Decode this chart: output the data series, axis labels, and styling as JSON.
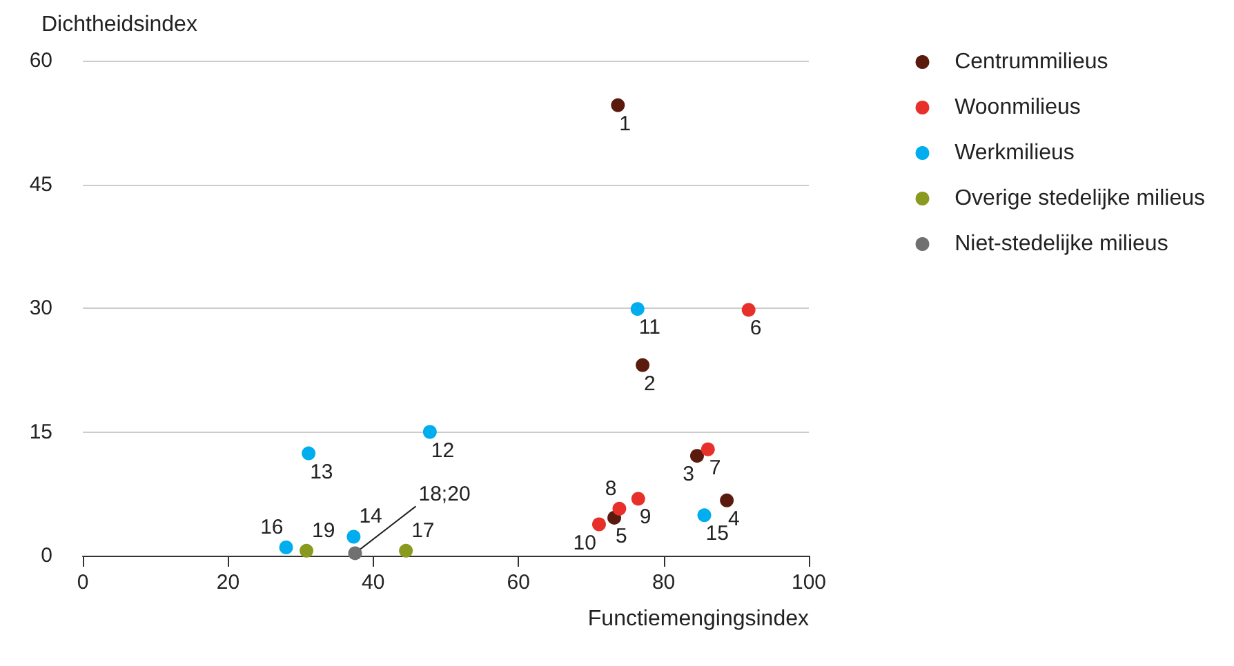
{
  "chart_data": {
    "type": "scatter",
    "xlabel": "Functiemengingsindex",
    "ylabel": "Dichtheidsindex",
    "xlim": [
      0,
      100
    ],
    "xticks": [
      0,
      20,
      40,
      60,
      80,
      100
    ],
    "ylim": [
      0,
      60
    ],
    "yticks": [
      0,
      15,
      30,
      45,
      60
    ],
    "grid": "y",
    "legend": "right",
    "marker": "circle",
    "series": [
      {
        "name": "Centrummilieus",
        "color": "#5a1a0e",
        "x": [
          73.7,
          77.1,
          84.6,
          88.7,
          73.2
        ],
        "values": [
          54.6,
          23.1,
          12.1,
          6.7,
          4.6
        ]
      },
      {
        "name": "Woonmilieus",
        "color": "#e8302a",
        "x": [
          91.7,
          86.1,
          73.9,
          76.5,
          71.1
        ],
        "values": [
          29.8,
          12.9,
          5.7,
          6.9,
          3.8
        ]
      },
      {
        "name": "Werkmilieus",
        "color": "#00aeef",
        "x": [
          76.4,
          47.8,
          31.1,
          37.3,
          85.6,
          28.0
        ],
        "values": [
          29.9,
          15.0,
          12.4,
          2.3,
          4.9,
          1.0
        ]
      },
      {
        "name": "Overige stedelijke milieus",
        "color": "#8a9a1e",
        "x": [
          44.5,
          30.8
        ],
        "values": [
          0.6,
          0.6
        ]
      },
      {
        "name": "Niet-stedelijke milieus",
        "color": "#707070",
        "x": [
          37.5
        ],
        "values": [
          0.3
        ]
      }
    ],
    "annotations": [
      {
        "text": "1",
        "x": 73.7,
        "y": 54.6
      },
      {
        "text": "2",
        "x": 77.1,
        "y": 23.1
      },
      {
        "text": "3",
        "x": 84.6,
        "y": 12.1
      },
      {
        "text": "4",
        "x": 88.7,
        "y": 6.7
      },
      {
        "text": "5",
        "x": 73.2,
        "y": 4.6
      },
      {
        "text": "6",
        "x": 91.7,
        "y": 29.8
      },
      {
        "text": "7",
        "x": 86.1,
        "y": 12.9
      },
      {
        "text": "8",
        "x": 73.9,
        "y": 5.7
      },
      {
        "text": "9",
        "x": 76.5,
        "y": 6.9
      },
      {
        "text": "10",
        "x": 71.1,
        "y": 3.8
      },
      {
        "text": "11",
        "x": 76.4,
        "y": 29.9
      },
      {
        "text": "12",
        "x": 47.8,
        "y": 15.0
      },
      {
        "text": "13",
        "x": 31.1,
        "y": 12.4
      },
      {
        "text": "14",
        "x": 37.3,
        "y": 2.3
      },
      {
        "text": "15",
        "x": 85.6,
        "y": 4.9
      },
      {
        "text": "16",
        "x": 28.0,
        "y": 1.0
      },
      {
        "text": "17",
        "x": 44.5,
        "y": 0.6
      },
      {
        "text": "18;20",
        "x": 37.5,
        "y": 0.3
      },
      {
        "text": "19",
        "x": 30.8,
        "y": 0.6
      }
    ]
  }
}
